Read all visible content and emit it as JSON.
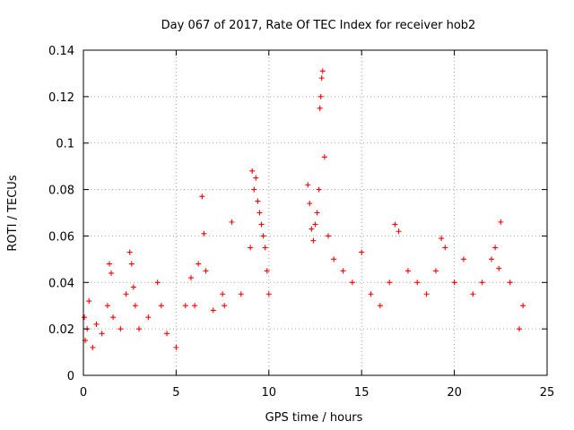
{
  "chart_data": {
    "type": "scatter",
    "title": "Day 067 of 2017, Rate Of TEC Index for receiver hob2",
    "xlabel": "GPS time / hours",
    "ylabel": "ROTI / TECUs",
    "xlim": [
      0,
      25
    ],
    "ylim": [
      0,
      0.14
    ],
    "xticks": [
      "0",
      "5",
      "10",
      "15",
      "20",
      "25"
    ],
    "yticks": [
      "0",
      "0.02",
      "0.04",
      "0.06",
      "0.08",
      "0.1",
      "0.12",
      "0.14"
    ],
    "grid": true,
    "marker": "+",
    "color": "#ff0000",
    "series": [
      {
        "x": [
          0.05,
          0.1,
          0.2,
          0.3,
          0.5,
          0.7,
          1.0,
          1.3,
          1.4,
          1.5,
          1.6,
          2.0,
          2.3,
          2.5,
          2.6,
          2.7,
          2.8,
          3.0,
          3.5,
          4.0,
          4.2,
          4.5,
          5.0,
          5.5,
          5.8,
          6.0,
          6.2,
          6.4,
          6.5,
          6.6,
          7.0,
          7.5,
          7.6,
          8.0,
          8.5,
          9.0,
          9.1,
          9.2,
          9.3,
          9.4,
          9.5,
          9.6,
          9.7,
          9.8,
          9.9,
          10.0,
          12.1,
          12.2,
          12.3,
          12.4,
          12.5,
          12.6,
          12.7,
          12.75,
          12.8,
          12.85,
          12.9,
          13.0,
          13.2,
          13.5,
          14.0,
          14.5,
          15.0,
          15.5,
          16.0,
          16.5,
          16.8,
          17.0,
          17.5,
          18.0,
          18.5,
          19.0,
          19.3,
          19.5,
          20.0,
          20.5,
          21.0,
          21.5,
          22.0,
          22.2,
          22.4,
          22.5,
          23.0,
          23.5,
          23.7
        ],
        "y": [
          0.025,
          0.015,
          0.02,
          0.032,
          0.012,
          0.022,
          0.018,
          0.03,
          0.048,
          0.044,
          0.025,
          0.02,
          0.035,
          0.053,
          0.048,
          0.038,
          0.03,
          0.02,
          0.025,
          0.04,
          0.03,
          0.018,
          0.012,
          0.03,
          0.042,
          0.03,
          0.048,
          0.077,
          0.061,
          0.045,
          0.028,
          0.035,
          0.03,
          0.066,
          0.035,
          0.055,
          0.088,
          0.08,
          0.085,
          0.075,
          0.07,
          0.065,
          0.06,
          0.055,
          0.045,
          0.035,
          0.082,
          0.074,
          0.063,
          0.058,
          0.065,
          0.07,
          0.08,
          0.115,
          0.12,
          0.128,
          0.131,
          0.094,
          0.06,
          0.05,
          0.045,
          0.04,
          0.053,
          0.035,
          0.03,
          0.04,
          0.065,
          0.062,
          0.045,
          0.04,
          0.035,
          0.045,
          0.059,
          0.055,
          0.04,
          0.05,
          0.035,
          0.04,
          0.05,
          0.055,
          0.046,
          0.066,
          0.04,
          0.02,
          0.03
        ]
      }
    ]
  }
}
